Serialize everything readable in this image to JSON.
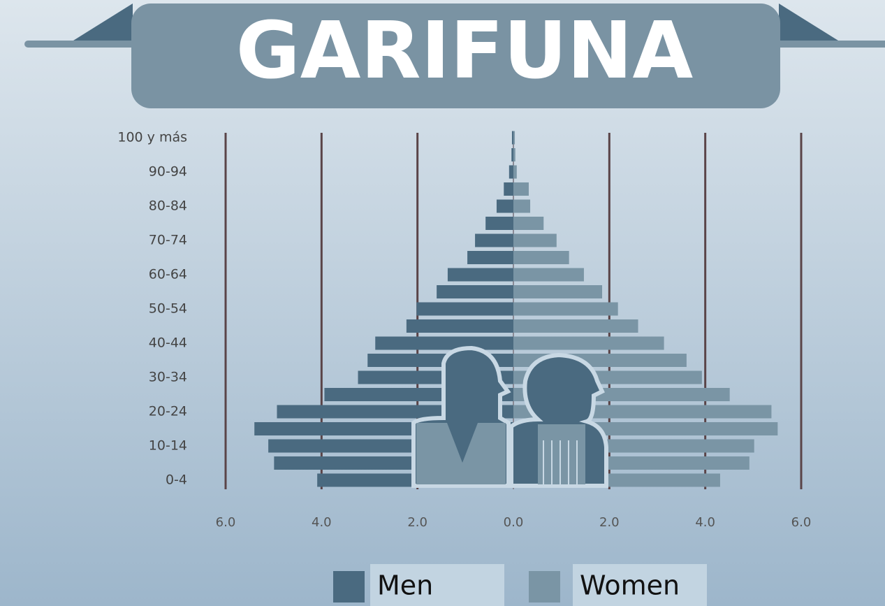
{
  "chart_data": {
    "type": "pyramid",
    "title": "GARIFUNA",
    "categories": [
      "0-4",
      null,
      "10-14",
      null,
      "20-24",
      null,
      "30-34",
      null,
      "40-44",
      null,
      "50-54",
      null,
      "60-64",
      null,
      "70-74",
      null,
      "80-84",
      null,
      "90-94",
      null,
      "100 y más"
    ],
    "series": [
      {
        "name": "Men",
        "color": "#4a6a80",
        "values": [
          4.09,
          4.99,
          5.11,
          5.4,
          4.93,
          3.94,
          3.24,
          3.04,
          2.88,
          2.23,
          2.02,
          1.6,
          1.37,
          0.96,
          0.8,
          0.58,
          0.35,
          0.2,
          0.09,
          0.04,
          0.03
        ]
      },
      {
        "name": "Women",
        "color": "#7a95a5",
        "values": [
          4.31,
          4.92,
          5.02,
          5.51,
          5.38,
          4.51,
          3.93,
          3.61,
          3.14,
          2.6,
          2.18,
          1.85,
          1.47,
          1.16,
          0.9,
          0.63,
          0.35,
          0.32,
          0.07,
          0.04,
          0.03
        ]
      }
    ],
    "xlim": [
      -6,
      6
    ],
    "xticks": [
      {
        "value": -6,
        "label": "6.0"
      },
      {
        "value": -4,
        "label": "4.0"
      },
      {
        "value": -2,
        "label": "2.0"
      },
      {
        "value": 0,
        "label": "0.0"
      },
      {
        "value": 2,
        "label": "2.0"
      },
      {
        "value": 4,
        "label": "4.0"
      },
      {
        "value": 6,
        "label": "6.0"
      }
    ],
    "grid": true
  }
}
